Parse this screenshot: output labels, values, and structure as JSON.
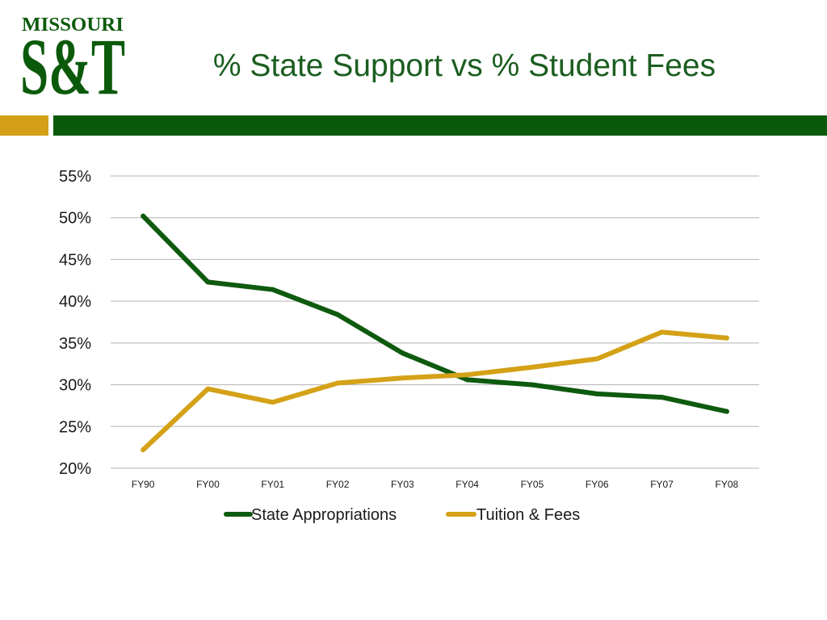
{
  "logo": {
    "wordmark": "MISSOURI",
    "monogram": "S&T"
  },
  "colors": {
    "brand_green": "#0b5a0b",
    "brand_gold": "#d4a017",
    "title": "#1b5e20",
    "gridline": "#b3b3b3"
  },
  "chart_data": {
    "type": "line",
    "title": "% State Support vs % Student Fees",
    "xlabel": "",
    "ylabel": "",
    "categories": [
      "FY90",
      "FY00",
      "FY01",
      "FY02",
      "FY03",
      "FY04",
      "FY05",
      "FY06",
      "FY07",
      "FY08"
    ],
    "ylim": [
      20,
      55
    ],
    "yticks": [
      20,
      25,
      30,
      35,
      40,
      45,
      50,
      55
    ],
    "ytick_labels": [
      "20%",
      "25%",
      "30%",
      "35%",
      "40%",
      "45%",
      "50%",
      "55%"
    ],
    "grid": true,
    "legend_position": "bottom",
    "series": [
      {
        "name": "State Appropriations",
        "color": "#0e5a0e",
        "values": [
          50.2,
          42.3,
          41.4,
          38.4,
          33.8,
          30.6,
          30.0,
          28.9,
          28.5,
          26.8
        ]
      },
      {
        "name": "Tuition & Fees",
        "color": "#d4a117",
        "values": [
          22.2,
          29.5,
          27.9,
          30.2,
          30.8,
          31.2,
          32.1,
          33.1,
          36.3,
          35.6
        ]
      }
    ]
  }
}
